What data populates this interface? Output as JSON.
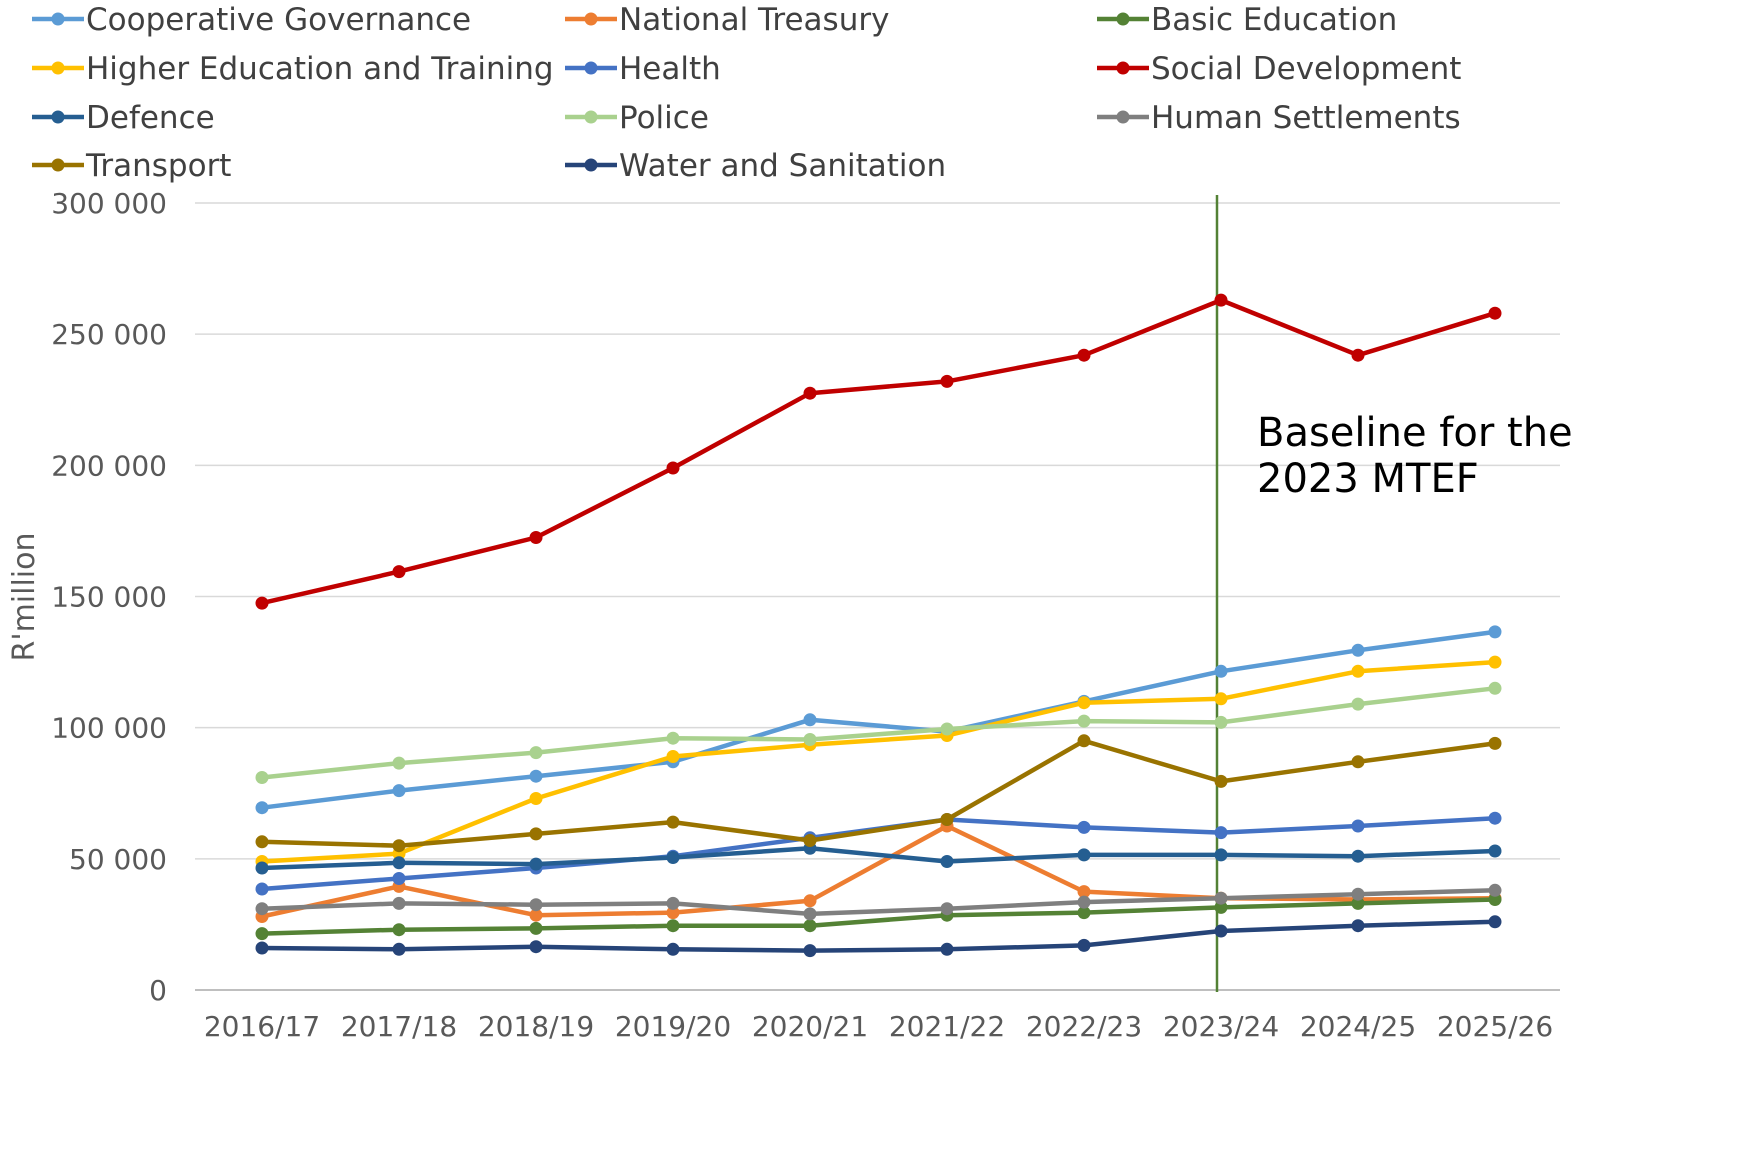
{
  "chart_data": {
    "type": "line",
    "ylabel": "R'million",
    "xlabel": "",
    "ylim": [
      0,
      300000
    ],
    "yticks": [
      0,
      50000,
      100000,
      150000,
      200000,
      250000,
      300000
    ],
    "ytick_labels": [
      "0",
      "50 000",
      "100 000",
      "150 000",
      "200 000",
      "250 000",
      "300 000"
    ],
    "categories": [
      "2016/17",
      "2017/18",
      "2018/19",
      "2019/20",
      "2020/21",
      "2021/22",
      "2022/23",
      "2023/24",
      "2024/25",
      "2025/26"
    ],
    "grid": "horizontal",
    "legend_position": "top",
    "annotation": {
      "lines": [
        "Baseline for the",
        "2023 MTEF"
      ],
      "at_category": "2023/24",
      "line_color": "#538135"
    },
    "series": [
      {
        "name": "Cooperative Governance",
        "color": "#5B9BD5",
        "values": [
          69500,
          76000,
          81500,
          87000,
          103000,
          98500,
          110000,
          121500,
          129500,
          136500
        ]
      },
      {
        "name": "National Treasury",
        "color": "#ED7D31",
        "values": [
          28000,
          39500,
          28500,
          29500,
          34000,
          62500,
          37500,
          35000,
          34500,
          35000
        ]
      },
      {
        "name": "Basic Education",
        "color": "#548235",
        "values": [
          21500,
          23000,
          23500,
          24500,
          24500,
          28500,
          29500,
          31500,
          33000,
          34500
        ]
      },
      {
        "name": "Higher Education and Training",
        "color": "#FFC000",
        "values": [
          49000,
          52000,
          73000,
          89000,
          93500,
          97000,
          109500,
          111000,
          121500,
          125000
        ]
      },
      {
        "name": "Health",
        "color": "#4472C4",
        "values": [
          38500,
          42500,
          46500,
          51000,
          58000,
          65000,
          62000,
          60000,
          62500,
          65500
        ]
      },
      {
        "name": "Social Development",
        "color": "#C00000",
        "values": [
          147500,
          159500,
          172500,
          199000,
          227500,
          232000,
          242000,
          263000,
          242000,
          258000
        ]
      },
      {
        "name": "Defence",
        "color": "#255E91",
        "values": [
          46500,
          48500,
          48000,
          50500,
          54000,
          49000,
          51500,
          51500,
          51000,
          53000
        ]
      },
      {
        "name": "Police",
        "color": "#A9D18E",
        "values": [
          81000,
          86500,
          90500,
          96000,
          95500,
          99500,
          102500,
          102000,
          109000,
          115000
        ]
      },
      {
        "name": "Human Settlements",
        "color": "#7F7F7F",
        "values": [
          31000,
          33000,
          32500,
          33000,
          29000,
          31000,
          33500,
          35000,
          36500,
          38000
        ]
      },
      {
        "name": "Transport",
        "color": "#997300",
        "values": [
          56500,
          55000,
          59500,
          64000,
          57000,
          65000,
          95000,
          79500,
          87000,
          94000
        ]
      },
      {
        "name": "Water and Sanitation",
        "color": "#264478",
        "values": [
          16000,
          15500,
          16500,
          15500,
          15000,
          15500,
          17000,
          22500,
          24500,
          26000
        ]
      }
    ]
  }
}
